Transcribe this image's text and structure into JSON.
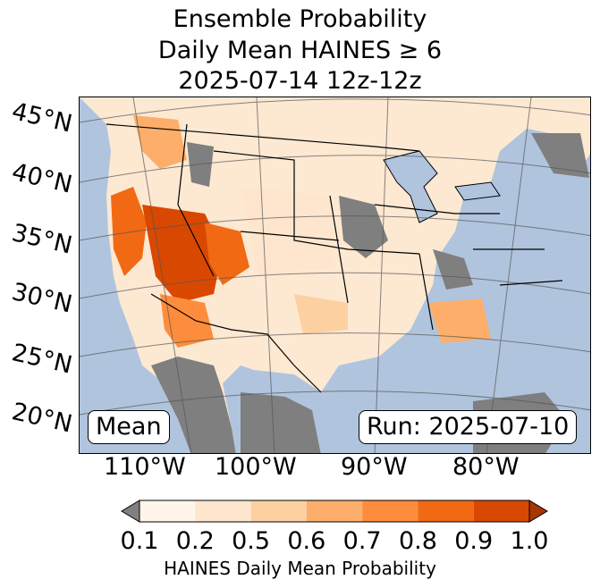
{
  "title": {
    "line1": "Ensemble Probability",
    "line2": "Daily Mean HAINES ≥ 6",
    "line3": "2025-07-14 12z-12z"
  },
  "map": {
    "lat_labels": [
      "45°N",
      "40°N",
      "35°N",
      "30°N",
      "25°N",
      "20°N"
    ],
    "lon_labels": [
      "110°W",
      "100°W",
      "90°W",
      "80°W"
    ],
    "mean_box": "Mean",
    "run_box": "Run: 2025-07-10"
  },
  "colorbar": {
    "label": "HAINES Daily Mean Probability",
    "ticks": [
      "0.1",
      "0.2",
      "0.5",
      "0.6",
      "0.7",
      "0.8",
      "0.9",
      "1.0"
    ],
    "colors": [
      "#fff5eb",
      "#fee6ce",
      "#fdd0a2",
      "#fdae6b",
      "#fd8d3c",
      "#f16913",
      "#d94801",
      "#a63603"
    ],
    "under_color": "#808080"
  },
  "colors": {
    "ocean": "#b0c4de",
    "no_data": "#7f7f7f",
    "low_prob": "#fde8d2"
  }
}
